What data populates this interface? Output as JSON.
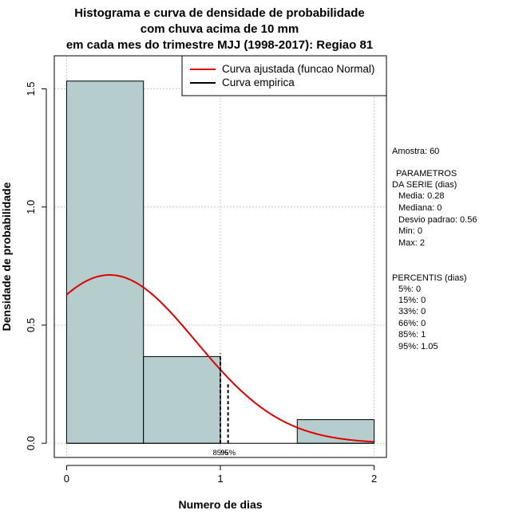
{
  "chart_data": {
    "type": "bar",
    "title": [
      "Histograma e curva de densidade de probabilidade",
      "com chuva acima de 10 mm",
      "em cada mes do trimestre MJJ (1998-2017): Regiao 81"
    ],
    "xlabel": "Numero de dias",
    "ylabel": "Densidade de probabilidade",
    "xlim": [
      -0.08,
      2.08
    ],
    "ylim": [
      -0.06,
      1.64
    ],
    "xticks": [
      "0",
      "1",
      "2"
    ],
    "xtick_values": [
      0,
      1,
      2
    ],
    "yticks": [
      "0.0",
      "0.5",
      "1.0",
      "1.5"
    ],
    "ytick_values": [
      0.0,
      0.5,
      1.0,
      1.5
    ],
    "grid": true,
    "bins": [
      {
        "x0": 0.0,
        "x1": 0.5,
        "density": 1.533
      },
      {
        "x0": 0.5,
        "x1": 1.0,
        "density": 0.367
      },
      {
        "x0": 1.0,
        "x1": 1.5,
        "density": 0.0
      },
      {
        "x0": 1.5,
        "x1": 2.0,
        "density": 0.1
      }
    ],
    "bar_color": "#b5cdcd",
    "normal_fit": {
      "mean": 0.28,
      "sd": 0.56
    },
    "normal_curve_color": "#e00000",
    "percentile_lines": [
      {
        "label": "85%",
        "x": 1.0,
        "height": 0.38
      },
      {
        "label": "95%",
        "x": 1.05,
        "height": 0.25
      }
    ],
    "legend": {
      "position": "top-right",
      "entries": [
        {
          "label": "Curva ajustada (funcao Normal)",
          "color": "#e00000"
        },
        {
          "label": "Curva empirica",
          "color": "#000000"
        }
      ]
    }
  },
  "side_panel": {
    "sample": "Amostra: 60",
    "params_title_1": "PARAMETROS",
    "params_title_2": "DA SERIE (dias)",
    "params": [
      "Media: 0.28",
      "Mediana: 0",
      "Desvio padrao: 0.56",
      "Min: 0",
      "Max: 2"
    ],
    "percentis_title": "PERCENTIS (dias)",
    "percentis": [
      "5%: 0",
      "15%: 0",
      "33%: 0",
      "66%: 0",
      "85%: 1",
      "95%: 1.05"
    ]
  }
}
